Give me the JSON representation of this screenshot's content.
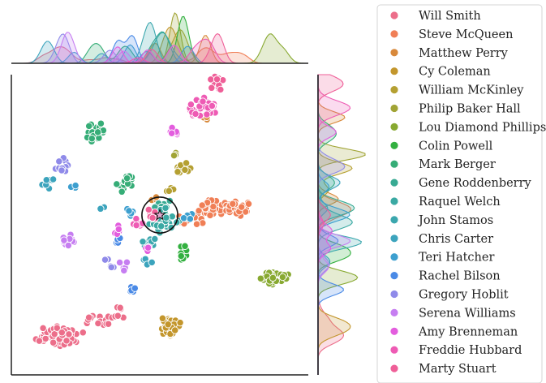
{
  "chart_data": {
    "type": "scatter",
    "title": "",
    "xlabel": "",
    "ylabel": "",
    "xlim": [
      -62,
      62
    ],
    "ylim": [
      -62,
      62
    ],
    "grid": false,
    "marginal_plots": "kde",
    "legend_placement": "right",
    "highlight": {
      "marker": "star",
      "x": 0,
      "y": 4,
      "ring_radius": 6
    },
    "series": [
      {
        "name": "Will Smith",
        "color": "#ec6e8a",
        "clusters": [
          {
            "x": -42,
            "y": -46,
            "sx": 5,
            "sy": 2.2,
            "n": 60
          },
          {
            "x": -27,
            "y": -40,
            "sx": 3,
            "sy": 1.8,
            "n": 14
          },
          {
            "x": -18,
            "y": -36,
            "sx": 2.5,
            "sy": 1.5,
            "n": 8
          }
        ]
      },
      {
        "name": "Steve McQueen",
        "color": "#f07f56",
        "clusters": [
          {
            "x": 22,
            "y": 7,
            "sx": 4,
            "sy": 2,
            "n": 34
          },
          {
            "x": 33,
            "y": 7,
            "sx": 3,
            "sy": 2,
            "n": 22
          },
          {
            "x": 13,
            "y": 2,
            "sx": 3,
            "sy": 1.5,
            "n": 9
          }
        ]
      },
      {
        "name": "Matthew Perry",
        "color": "#d8893b",
        "clusters": [
          {
            "x": 19,
            "y": 43,
            "sx": 0.6,
            "sy": 1.8,
            "n": 4
          },
          {
            "x": -2,
            "y": 11,
            "sx": 1,
            "sy": 1,
            "n": 3
          }
        ]
      },
      {
        "name": "Cy Coleman",
        "color": "#c3962c",
        "clusters": [
          {
            "x": 4,
            "y": -42,
            "sx": 2.3,
            "sy": 2.2,
            "n": 28
          }
        ]
      },
      {
        "name": "William McKinley",
        "color": "#b5a032",
        "clusters": [
          {
            "x": 10,
            "y": 23,
            "sx": 2,
            "sy": 1.2,
            "n": 14
          },
          {
            "x": 4,
            "y": 14,
            "sx": 1.2,
            "sy": 0.8,
            "n": 4
          }
        ]
      },
      {
        "name": "Philip Baker Hall",
        "color": "#a1a435",
        "clusters": [
          {
            "x": 6,
            "y": 28,
            "sx": 0.8,
            "sy": 0.8,
            "n": 3
          }
        ]
      },
      {
        "name": "Lou Diamond Phillips",
        "color": "#88a931",
        "clusters": [
          {
            "x": 48,
            "y": -22,
            "sx": 3.2,
            "sy": 1.5,
            "n": 26
          }
        ]
      },
      {
        "name": "Colin Powell",
        "color": "#33b040",
        "clusters": [
          {
            "x": 10,
            "y": -12,
            "sx": 1.5,
            "sy": 2,
            "n": 9
          }
        ]
      },
      {
        "name": "Mark Berger",
        "color": "#36ad77",
        "clusters": [
          {
            "x": -27,
            "y": 38,
            "sx": 2,
            "sy": 2,
            "n": 20
          },
          {
            "x": -14,
            "y": 17,
            "sx": 2,
            "sy": 1.8,
            "n": 16
          }
        ]
      },
      {
        "name": "Gene Roddenberry",
        "color": "#38aa93",
        "clusters": [
          {
            "x": 0,
            "y": 7,
            "sx": 3,
            "sy": 2,
            "n": 10
          }
        ]
      },
      {
        "name": "Raquel Welch",
        "color": "#3aa9a3",
        "clusters": [
          {
            "x": 1,
            "y": 2,
            "sx": 4,
            "sy": 3,
            "n": 28
          }
        ]
      },
      {
        "name": "John Stamos",
        "color": "#3ba7ae",
        "clusters": [
          {
            "x": -4,
            "y": -6,
            "sx": 2,
            "sy": 1.5,
            "n": 8
          }
        ]
      },
      {
        "name": "Chris Carter",
        "color": "#3ca4bd",
        "clusters": [
          {
            "x": -47,
            "y": 18,
            "sx": 1.8,
            "sy": 1.5,
            "n": 8
          },
          {
            "x": -24,
            "y": 6,
            "sx": 1,
            "sy": 1,
            "n": 3
          },
          {
            "x": -5,
            "y": -15,
            "sx": 1.5,
            "sy": 1,
            "n": 4
          }
        ]
      },
      {
        "name": "Teri Hatcher",
        "color": "#3d9fcf",
        "clusters": [
          {
            "x": -36,
            "y": 17,
            "sx": 1,
            "sy": 1,
            "n": 3
          },
          {
            "x": -13,
            "y": 5,
            "sx": 1.5,
            "sy": 1,
            "n": 5
          },
          {
            "x": 12,
            "y": 3,
            "sx": 1.5,
            "sy": 1,
            "n": 5
          }
        ]
      },
      {
        "name": "Rachel Bilson",
        "color": "#4a8ae6",
        "clusters": [
          {
            "x": -17,
            "y": -7,
            "sx": 1.5,
            "sy": 1,
            "n": 4
          },
          {
            "x": -12,
            "y": -26,
            "sx": 2,
            "sy": 1,
            "n": 5
          }
        ]
      },
      {
        "name": "Gregory Hoblit",
        "color": "#8f8ae9",
        "clusters": [
          {
            "x": -40,
            "y": 25,
            "sx": 1.8,
            "sy": 1.8,
            "n": 12
          },
          {
            "x": -20,
            "y": -16,
            "sx": 2,
            "sy": 1.2,
            "n": 5
          }
        ]
      },
      {
        "name": "Serena Williams",
        "color": "#c67ef1",
        "clusters": [
          {
            "x": -38,
            "y": -6,
            "sx": 2.5,
            "sy": 1.5,
            "n": 14
          },
          {
            "x": -15,
            "y": -17,
            "sx": 2,
            "sy": 1.2,
            "n": 5
          }
        ]
      },
      {
        "name": "Amy Brenneman",
        "color": "#e35dde",
        "clusters": [
          {
            "x": 6,
            "y": 38,
            "sx": 1,
            "sy": 1.2,
            "n": 6
          },
          {
            "x": -18,
            "y": -2,
            "sx": 1.5,
            "sy": 1.2,
            "n": 5
          },
          {
            "x": -4,
            "y": -9,
            "sx": 1.2,
            "sy": 1,
            "n": 4
          }
        ]
      },
      {
        "name": "Freddie Hubbard",
        "color": "#ee5bb4",
        "clusters": [
          {
            "x": 18,
            "y": 48,
            "sx": 3,
            "sy": 2.3,
            "n": 42
          },
          {
            "x": -10,
            "y": 0,
            "sx": 1.5,
            "sy": 1.2,
            "n": 6
          }
        ]
      },
      {
        "name": "Marty Stuart",
        "color": "#ef5f98",
        "clusters": [
          {
            "x": 24,
            "y": 58,
            "sx": 2.5,
            "sy": 1.5,
            "n": 14
          },
          {
            "x": -4,
            "y": 4,
            "sx": 1.5,
            "sy": 1.5,
            "n": 6
          }
        ]
      }
    ]
  }
}
